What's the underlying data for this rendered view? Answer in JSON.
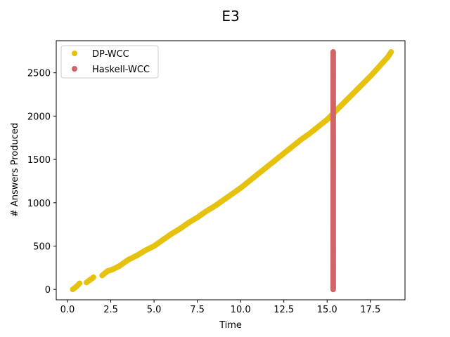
{
  "chart_data": {
    "type": "scatter",
    "title": "E3",
    "xlabel": "Time",
    "ylabel": "# Answers Produced",
    "xlim": [
      -0.65,
      19.5
    ],
    "ylim": [
      -120,
      2870
    ],
    "xticks": [
      0.0,
      2.5,
      5.0,
      7.5,
      10.0,
      12.5,
      15.0,
      17.5
    ],
    "xtick_labels": [
      "0.0",
      "2.5",
      "5.0",
      "7.5",
      "10.0",
      "12.5",
      "15.0",
      "17.5"
    ],
    "yticks": [
      0,
      500,
      1000,
      1500,
      2000,
      2500
    ],
    "ytick_labels": [
      "0",
      "500",
      "1000",
      "1500",
      "2000",
      "2500"
    ],
    "grid": false,
    "legend_position": "top-left",
    "series": [
      {
        "name": "DP-WCC",
        "color": "#e6c20f",
        "x": [
          0.3,
          0.5,
          0.7,
          1.1,
          1.5,
          2.0,
          2.3,
          2.6,
          3.0,
          3.5,
          4.0,
          4.5,
          5.0,
          5.5,
          6.0,
          6.5,
          7.0,
          7.5,
          8.0,
          8.5,
          9.0,
          9.5,
          10.0,
          10.5,
          11.0,
          11.5,
          12.0,
          12.5,
          13.0,
          13.5,
          14.0,
          14.5,
          15.0,
          15.5,
          16.0,
          16.5,
          17.0,
          17.5,
          18.0,
          18.5,
          18.7
        ],
        "y": [
          0,
          30,
          70,
          80,
          140,
          160,
          210,
          230,
          270,
          340,
          390,
          450,
          500,
          570,
          640,
          700,
          770,
          830,
          900,
          960,
          1030,
          1100,
          1170,
          1250,
          1330,
          1410,
          1490,
          1570,
          1650,
          1730,
          1800,
          1880,
          1960,
          2060,
          2160,
          2260,
          2360,
          2460,
          2570,
          2680,
          2740
        ]
      },
      {
        "name": "Haskell-WCC",
        "color": "#d16466",
        "x": [
          15.35,
          15.35
        ],
        "y": [
          0,
          2740
        ]
      }
    ]
  }
}
